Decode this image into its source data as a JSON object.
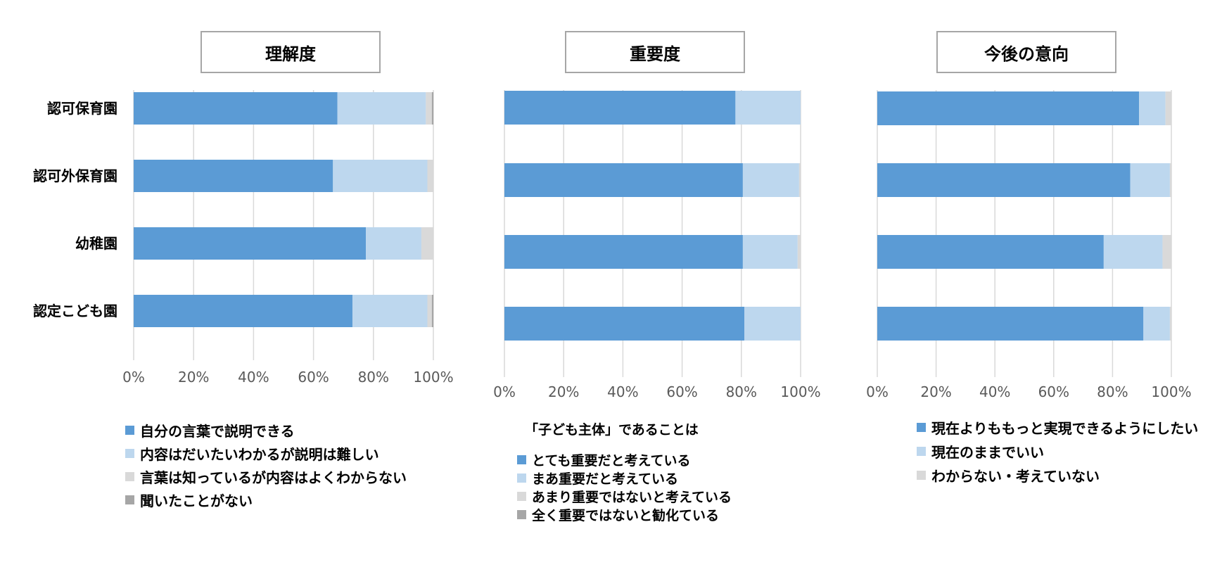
{
  "colors": {
    "series1": "#5b9bd5",
    "series2": "#bdd7ee",
    "series3": "#d9d9d9",
    "series4": "#a6a6a6",
    "grid": "#d9d9d9",
    "tick_text": "#595959"
  },
  "chart_data": [
    {
      "type": "bar",
      "orientation": "horizontal",
      "stacked": true,
      "title": "理解度",
      "categories": [
        "認可保育園",
        "認可外保育園",
        "幼稚園",
        "認定こども園"
      ],
      "xlim": [
        0,
        100
      ],
      "x_ticks": [
        "0%",
        "20%",
        "40%",
        "60%",
        "80%",
        "100%"
      ],
      "grid": true,
      "legend_position": "bottom",
      "series": [
        {
          "name": "自分の言葉で説明できる",
          "values": [
            68,
            66.5,
            77.5,
            73
          ]
        },
        {
          "name": "内容はだいたいわかるが説明は難しい",
          "values": [
            29.5,
            31.5,
            18.5,
            25
          ]
        },
        {
          "name": "言葉は知っているが内容はよくわからない",
          "values": [
            2,
            2,
            4,
            1.5
          ]
        },
        {
          "name": "聞いたことがない",
          "values": [
            0.5,
            0,
            0,
            0.5
          ]
        }
      ]
    },
    {
      "type": "bar",
      "orientation": "horizontal",
      "stacked": true,
      "title": "重要度",
      "categories": [
        "認可保育園",
        "認可外保育園",
        "幼稚園",
        "認定こども園"
      ],
      "xlim": [
        0,
        100
      ],
      "x_ticks": [
        "0%",
        "20%",
        "40%",
        "60%",
        "80%",
        "100%"
      ],
      "grid": true,
      "legend_position": "bottom",
      "legend_heading": "「子ども主体」であることは",
      "series": [
        {
          "name": "とても重要だと考えている",
          "values": [
            78,
            80.5,
            80.5,
            81
          ]
        },
        {
          "name": "まあ重要だと考えている",
          "values": [
            22,
            19,
            18.5,
            19
          ]
        },
        {
          "name": "あまり重要ではないと考えている",
          "values": [
            0,
            0.5,
            1,
            0
          ]
        },
        {
          "name": "全く重要ではないと勧化ている",
          "values": [
            0,
            0,
            0,
            0
          ]
        }
      ]
    },
    {
      "type": "bar",
      "orientation": "horizontal",
      "stacked": true,
      "title": "今後の意向",
      "categories": [
        "認可保育園",
        "認可外保育園",
        "幼稚園",
        "認定こども園"
      ],
      "xlim": [
        0,
        100
      ],
      "x_ticks": [
        "0%",
        "20%",
        "40%",
        "60%",
        "80%",
        "100%"
      ],
      "grid": true,
      "legend_position": "bottom",
      "series": [
        {
          "name": "現在よりももっと実現できるようにしたい",
          "values": [
            89,
            86,
            77,
            90.5
          ]
        },
        {
          "name": "現在のままでいい",
          "values": [
            9,
            13.5,
            20,
            9
          ]
        },
        {
          "name": "わからない・考えていない",
          "values": [
            2,
            0.5,
            3,
            0.5
          ]
        }
      ]
    }
  ]
}
